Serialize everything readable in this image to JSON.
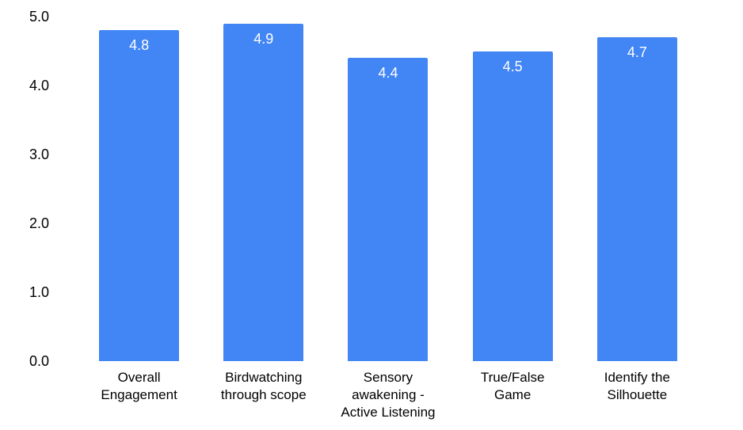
{
  "chart_data": {
    "type": "bar",
    "title": "",
    "categories": [
      "Overall Engagement",
      "Birdwatching through scope",
      "Sensory awakening - Active Listening",
      "True/False Game",
      "Identify the Silhouette"
    ],
    "categories_display": [
      "Overall\nEngagement",
      "Birdwatching\nthrough scope",
      "Sensory\nawakening -\nActive Listening",
      "True/False\nGame",
      "Identify the\nSilhouette"
    ],
    "values": [
      4.8,
      4.9,
      4.4,
      4.5,
      4.7
    ],
    "value_labels": [
      "4.8",
      "4.9",
      "4.4",
      "4.5",
      "4.7"
    ],
    "y_tick_labels": [
      "5.0",
      "4.0",
      "3.0",
      "2.0",
      "1.0",
      "0.0"
    ],
    "ylim": [
      0,
      5
    ],
    "xlabel": "",
    "ylabel": "",
    "grid": false,
    "legend_position": "none",
    "bar_color": "#4285F4",
    "value_label_color": "#FFFFFF",
    "axis_text_color": "#000000",
    "background_color": "#FFFFFF"
  }
}
